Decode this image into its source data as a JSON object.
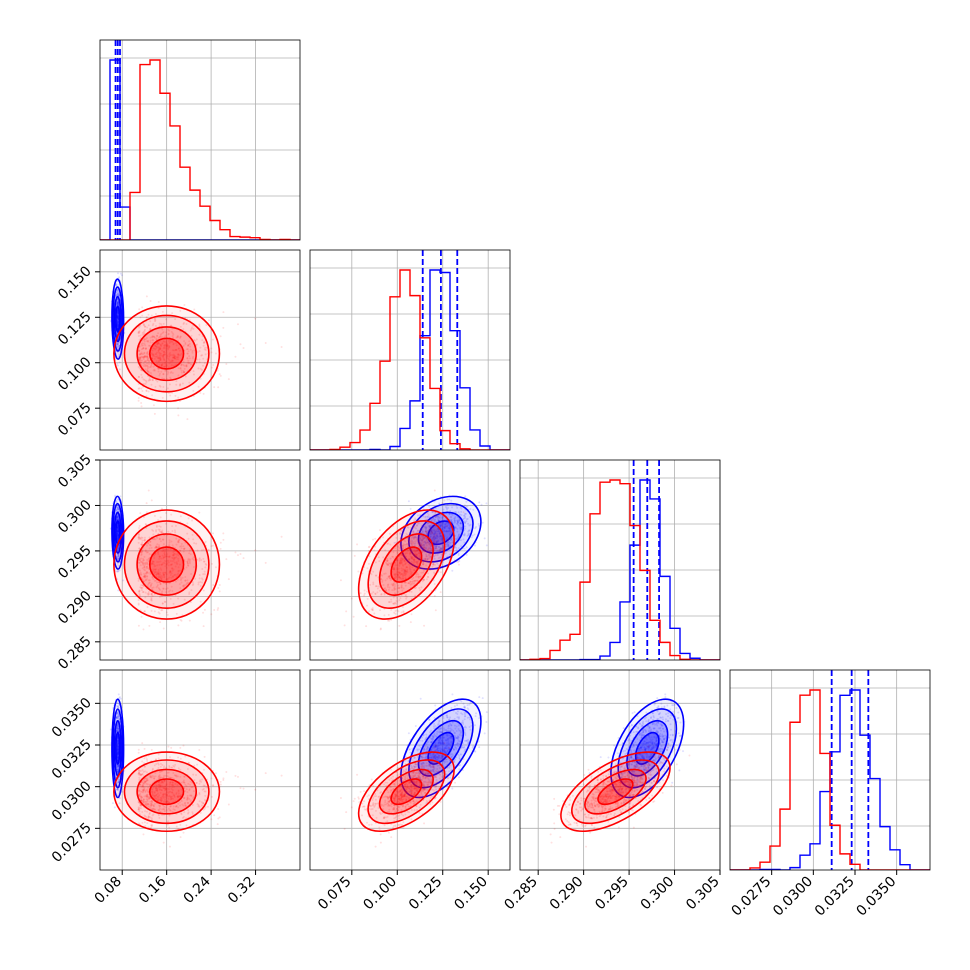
{
  "chart_data": {
    "type": "corner",
    "title": "",
    "grid": true,
    "colors": {
      "series_a": "#0000ff",
      "series_b": "#ff0000"
    },
    "parameters": [
      {
        "range": [
          0.04,
          0.4
        ],
        "ticks": [
          0.08,
          0.16,
          0.24,
          0.32
        ],
        "tick_labels": [
          "0.08",
          "0.16",
          "0.24",
          "0.32"
        ]
      },
      {
        "range": [
          0.052,
          0.162
        ],
        "ticks": [
          0.075,
          0.1,
          0.125,
          0.15
        ],
        "tick_labels": [
          "0.075",
          "0.100",
          "0.125",
          "0.150"
        ]
      },
      {
        "range": [
          0.283,
          0.305
        ],
        "ticks": [
          0.285,
          0.29,
          0.295,
          0.3,
          0.305
        ],
        "tick_labels": [
          "0.285",
          "0.290",
          "0.295",
          "0.300",
          "0.305"
        ]
      },
      {
        "range": [
          0.025,
          0.037
        ],
        "ticks": [
          0.0275,
          0.03,
          0.0325,
          0.035
        ],
        "tick_labels": [
          "0.0275",
          "0.0300",
          "0.0325",
          "0.0350"
        ]
      }
    ],
    "series": [
      {
        "color": "#0000ff",
        "mean": [
          0.072,
          0.124,
          0.297,
          0.0323
        ],
        "std": [
          0.0042,
          0.0088,
          0.0016,
          0.00118
        ],
        "corr": [
          [
            1,
            -0.05,
            -0.05,
            0.0
          ],
          [
            -0.05,
            1,
            0.3,
            0.55
          ],
          [
            -0.05,
            0.3,
            1,
            0.5
          ],
          [
            0.0,
            0.55,
            0.5,
            1
          ]
        ],
        "quantiles": [
          [
            0.068,
            0.072,
            0.076
          ],
          [
            0.114,
            0.124,
            0.133
          ],
          [
            0.2955,
            0.297,
            0.2983
          ],
          [
            0.0311,
            0.0323,
            0.0333
          ]
        ]
      },
      {
        "color": "#ff0000",
        "mean": [
          0.16,
          0.105,
          0.2935,
          0.0297
        ],
        "std": [
          0.038,
          0.0105,
          0.0024,
          0.00095
        ],
        "skew": [
          0.9,
          0,
          0,
          0
        ],
        "corr": [
          [
            1,
            0.0,
            0.0,
            0.0
          ],
          [
            0.0,
            1,
            0.45,
            0.55
          ],
          [
            0.0,
            0.45,
            1,
            0.6
          ],
          [
            0.0,
            0.55,
            0.6,
            1
          ]
        ]
      }
    ]
  }
}
